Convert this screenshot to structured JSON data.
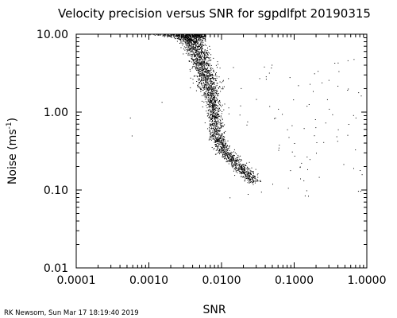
{
  "chart_data": {
    "type": "scatter",
    "title": "Velocity precision versus SNR for sgpdlfpt 20190315",
    "xlabel": "SNR",
    "ylabel_main": "Noise (ms",
    "ylabel_exp": "-1",
    "ylabel_close": ")",
    "x_scale": "log",
    "y_scale": "log",
    "xlim": [
      0.0001,
      1.0
    ],
    "ylim": [
      0.01,
      10.0
    ],
    "x_ticks": [
      {
        "value": 0.0001,
        "label": "0.0001"
      },
      {
        "value": 0.001,
        "label": "0.0010"
      },
      {
        "value": 0.01,
        "label": "0.0100"
      },
      {
        "value": 0.1,
        "label": "0.1000"
      },
      {
        "value": 1.0,
        "label": "1.0000"
      }
    ],
    "y_ticks": [
      {
        "value": 10.0,
        "label": "10.00"
      },
      {
        "value": 1.0,
        "label": "1.00"
      },
      {
        "value": 0.1,
        "label": "0.10"
      },
      {
        "value": 0.01,
        "label": "0.01"
      }
    ],
    "grid": false,
    "point_color": "#000000",
    "ridge": [
      {
        "x": 0.003,
        "y": 10.0
      },
      {
        "x": 0.004,
        "y": 8.0
      },
      {
        "x": 0.005,
        "y": 5.0
      },
      {
        "x": 0.006,
        "y": 3.0
      },
      {
        "x": 0.007,
        "y": 1.8
      },
      {
        "x": 0.0075,
        "y": 1.2
      },
      {
        "x": 0.008,
        "y": 0.8
      },
      {
        "x": 0.0085,
        "y": 0.5
      },
      {
        "x": 0.01,
        "y": 0.35
      },
      {
        "x": 0.014,
        "y": 0.25
      },
      {
        "x": 0.02,
        "y": 0.18
      },
      {
        "x": 0.028,
        "y": 0.13
      }
    ],
    "ceiling": {
      "y": 10.0,
      "x_range": [
        0.001,
        0.006
      ]
    },
    "outliers": [
      {
        "x": 0.00055,
        "y": 0.85
      },
      {
        "x": 0.00058,
        "y": 0.5
      },
      {
        "x": 0.0015,
        "y": 1.35
      },
      {
        "x": 0.045,
        "y": 3.2
      },
      {
        "x": 0.06,
        "y": 1.1
      },
      {
        "x": 0.08,
        "y": 0.6
      },
      {
        "x": 0.1,
        "y": 0.4
      },
      {
        "x": 0.12,
        "y": 0.2
      },
      {
        "x": 0.14,
        "y": 0.085
      },
      {
        "x": 0.2,
        "y": 0.3
      },
      {
        "x": 0.3,
        "y": 1.1
      },
      {
        "x": 0.4,
        "y": 0.6
      },
      {
        "x": 0.55,
        "y": 2.0
      },
      {
        "x": 0.7,
        "y": 0.85
      },
      {
        "x": 0.8,
        "y": 0.18
      },
      {
        "x": 0.05,
        "y": 0.12
      },
      {
        "x": 0.035,
        "y": 0.095
      },
      {
        "x": 0.9,
        "y": 0.5
      }
    ],
    "footer": "RK Newsom, Sun Mar 17 18:19:40 2019"
  }
}
